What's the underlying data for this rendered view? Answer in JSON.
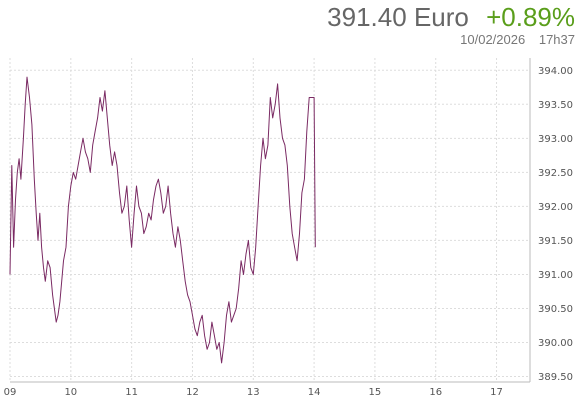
{
  "quote": {
    "price": "391.40",
    "currency": "Euro",
    "change": "+0.89%",
    "date": "10/02/2026",
    "time": "17h37"
  },
  "colors": {
    "line": "#7a2a63",
    "change_positive": "#5a9e1b",
    "grid": "#dddddd",
    "text": "#666666"
  },
  "chart_data": {
    "type": "line",
    "title": "",
    "xlabel": "",
    "ylabel": "",
    "x_ticks": [
      "09",
      "10",
      "11",
      "12",
      "13",
      "14",
      "15",
      "16",
      "17"
    ],
    "y_ticks": [
      "389.50",
      "390.00",
      "390.50",
      "391.00",
      "391.50",
      "392.00",
      "392.50",
      "393.00",
      "393.50",
      "394.00"
    ],
    "xlim": [
      9.0,
      17.55
    ],
    "ylim": [
      389.42,
      394.18
    ],
    "grid": true,
    "y_axis_position": "right",
    "series": [
      {
        "name": "",
        "points": [
          [
            9.0,
            391.0
          ],
          [
            9.03,
            392.6
          ],
          [
            9.06,
            391.4
          ],
          [
            9.09,
            392.1
          ],
          [
            9.12,
            392.5
          ],
          [
            9.15,
            392.7
          ],
          [
            9.18,
            392.4
          ],
          [
            9.22,
            393.0
          ],
          [
            9.25,
            393.5
          ],
          [
            9.28,
            393.9
          ],
          [
            9.32,
            393.6
          ],
          [
            9.36,
            393.2
          ],
          [
            9.4,
            392.4
          ],
          [
            9.43,
            391.9
          ],
          [
            9.46,
            391.5
          ],
          [
            9.49,
            391.9
          ],
          [
            9.52,
            391.4
          ],
          [
            9.55,
            391.1
          ],
          [
            9.58,
            390.9
          ],
          [
            9.62,
            391.2
          ],
          [
            9.66,
            391.1
          ],
          [
            9.7,
            390.7
          ],
          [
            9.73,
            390.5
          ],
          [
            9.76,
            390.3
          ],
          [
            9.79,
            390.4
          ],
          [
            9.82,
            390.6
          ],
          [
            9.85,
            390.9
          ],
          [
            9.88,
            391.2
          ],
          [
            9.92,
            391.4
          ],
          [
            9.96,
            392.0
          ],
          [
            10.0,
            392.3
          ],
          [
            10.04,
            392.5
          ],
          [
            10.08,
            392.4
          ],
          [
            10.12,
            392.6
          ],
          [
            10.16,
            392.8
          ],
          [
            10.2,
            393.0
          ],
          [
            10.24,
            392.8
          ],
          [
            10.28,
            392.7
          ],
          [
            10.32,
            392.5
          ],
          [
            10.36,
            392.9
          ],
          [
            10.4,
            393.1
          ],
          [
            10.44,
            393.3
          ],
          [
            10.48,
            393.6
          ],
          [
            10.52,
            393.4
          ],
          [
            10.56,
            393.7
          ],
          [
            10.6,
            393.3
          ],
          [
            10.64,
            392.9
          ],
          [
            10.68,
            392.6
          ],
          [
            10.72,
            392.8
          ],
          [
            10.76,
            392.6
          ],
          [
            10.8,
            392.2
          ],
          [
            10.84,
            391.9
          ],
          [
            10.88,
            392.0
          ],
          [
            10.92,
            392.3
          ],
          [
            10.96,
            391.8
          ],
          [
            11.0,
            391.4
          ],
          [
            11.04,
            391.9
          ],
          [
            11.08,
            392.3
          ],
          [
            11.12,
            392.0
          ],
          [
            11.16,
            391.9
          ],
          [
            11.2,
            391.6
          ],
          [
            11.24,
            391.7
          ],
          [
            11.28,
            391.9
          ],
          [
            11.32,
            391.8
          ],
          [
            11.36,
            392.1
          ],
          [
            11.4,
            392.3
          ],
          [
            11.44,
            392.4
          ],
          [
            11.48,
            392.2
          ],
          [
            11.52,
            391.9
          ],
          [
            11.56,
            392.0
          ],
          [
            11.6,
            392.3
          ],
          [
            11.64,
            391.9
          ],
          [
            11.68,
            391.6
          ],
          [
            11.72,
            391.4
          ],
          [
            11.76,
            391.7
          ],
          [
            11.8,
            391.5
          ],
          [
            11.84,
            391.2
          ],
          [
            11.88,
            390.9
          ],
          [
            11.92,
            390.7
          ],
          [
            11.96,
            390.6
          ],
          [
            12.0,
            390.4
          ],
          [
            12.04,
            390.2
          ],
          [
            12.08,
            390.1
          ],
          [
            12.12,
            390.3
          ],
          [
            12.16,
            390.4
          ],
          [
            12.2,
            390.1
          ],
          [
            12.24,
            389.9
          ],
          [
            12.28,
            390.0
          ],
          [
            12.32,
            390.3
          ],
          [
            12.36,
            390.1
          ],
          [
            12.4,
            389.9
          ],
          [
            12.44,
            390.0
          ],
          [
            12.48,
            389.7
          ],
          [
            12.52,
            390.0
          ],
          [
            12.56,
            390.4
          ],
          [
            12.6,
            390.6
          ],
          [
            12.64,
            390.3
          ],
          [
            12.68,
            390.4
          ],
          [
            12.72,
            390.5
          ],
          [
            12.76,
            390.8
          ],
          [
            12.8,
            391.2
          ],
          [
            12.84,
            391.0
          ],
          [
            12.88,
            391.3
          ],
          [
            12.92,
            391.5
          ],
          [
            12.96,
            391.1
          ],
          [
            13.0,
            391.0
          ],
          [
            13.04,
            391.4
          ],
          [
            13.08,
            392.0
          ],
          [
            13.12,
            392.6
          ],
          [
            13.16,
            393.0
          ],
          [
            13.2,
            392.7
          ],
          [
            13.24,
            392.9
          ],
          [
            13.28,
            393.6
          ],
          [
            13.32,
            393.3
          ],
          [
            13.36,
            393.5
          ],
          [
            13.4,
            393.8
          ],
          [
            13.44,
            393.3
          ],
          [
            13.48,
            393.0
          ],
          [
            13.52,
            392.9
          ],
          [
            13.56,
            392.6
          ],
          [
            13.6,
            392.0
          ],
          [
            13.64,
            391.6
          ],
          [
            13.68,
            391.4
          ],
          [
            13.72,
            391.2
          ],
          [
            13.76,
            391.6
          ],
          [
            13.8,
            392.2
          ],
          [
            13.84,
            392.4
          ],
          [
            13.88,
            393.1
          ],
          [
            13.92,
            393.6
          ],
          [
            13.94,
            393.6
          ],
          [
            13.96,
            393.6
          ],
          [
            14.0,
            393.6
          ],
          [
            14.02,
            391.4
          ]
        ]
      }
    ]
  }
}
